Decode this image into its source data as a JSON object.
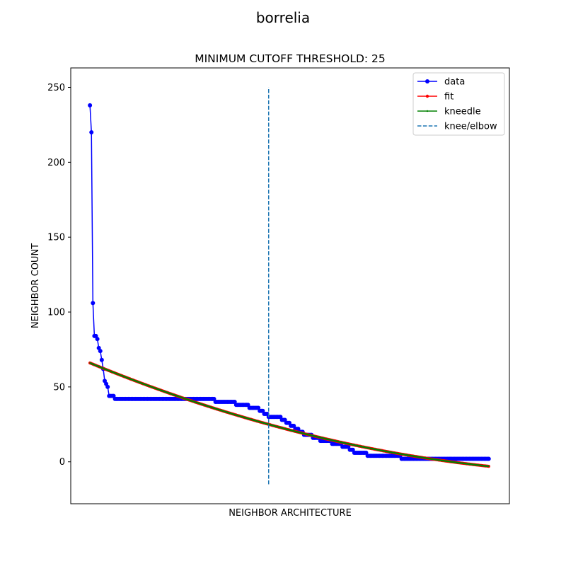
{
  "figure": {
    "suptitle": "borrelia"
  },
  "chart_data": {
    "type": "line",
    "title": "MINIMUM CUTOFF THRESHOLD: 25",
    "xlabel": "NEIGHBOR ARCHITECTURE",
    "ylabel": "NEIGHBOR COUNT",
    "ylim": [
      -28,
      263
    ],
    "xlim": [
      -13,
      284
    ],
    "x_ticks_shown": false,
    "yticks": [
      0,
      50,
      100,
      150,
      200,
      250
    ],
    "grid": false,
    "legend_position": "top-right",
    "data_points_n": 271,
    "data_steps": [
      {
        "from": 0,
        "to": 0,
        "value": 238
      },
      {
        "from": 1,
        "to": 1,
        "value": 220
      },
      {
        "from": 2,
        "to": 2,
        "value": 106
      },
      {
        "from": 3,
        "to": 4,
        "value": 84
      },
      {
        "from": 5,
        "to": 5,
        "value": 82
      },
      {
        "from": 6,
        "to": 6,
        "value": 76
      },
      {
        "from": 7,
        "to": 7,
        "value": 74
      },
      {
        "from": 8,
        "to": 8,
        "value": 68
      },
      {
        "from": 9,
        "to": 9,
        "value": 62
      },
      {
        "from": 10,
        "to": 10,
        "value": 54
      },
      {
        "from": 11,
        "to": 11,
        "value": 52
      },
      {
        "from": 12,
        "to": 12,
        "value": 50
      },
      {
        "from": 13,
        "to": 16,
        "value": 44
      },
      {
        "from": 17,
        "to": 84,
        "value": 42
      },
      {
        "from": 85,
        "to": 98,
        "value": 40
      },
      {
        "from": 99,
        "to": 107,
        "value": 38
      },
      {
        "from": 108,
        "to": 114,
        "value": 36
      },
      {
        "from": 115,
        "to": 117,
        "value": 34
      },
      {
        "from": 118,
        "to": 120,
        "value": 32
      },
      {
        "from": 121,
        "to": 129,
        "value": 30
      },
      {
        "from": 130,
        "to": 132,
        "value": 28
      },
      {
        "from": 133,
        "to": 135,
        "value": 26
      },
      {
        "from": 136,
        "to": 138,
        "value": 24
      },
      {
        "from": 139,
        "to": 141,
        "value": 22
      },
      {
        "from": 142,
        "to": 144,
        "value": 20
      },
      {
        "from": 145,
        "to": 150,
        "value": 18
      },
      {
        "from": 151,
        "to": 155,
        "value": 16
      },
      {
        "from": 156,
        "to": 163,
        "value": 14
      },
      {
        "from": 164,
        "to": 170,
        "value": 12
      },
      {
        "from": 171,
        "to": 175,
        "value": 10
      },
      {
        "from": 176,
        "to": 178,
        "value": 8
      },
      {
        "from": 179,
        "to": 187,
        "value": 6
      },
      {
        "from": 188,
        "to": 210,
        "value": 4
      },
      {
        "from": 211,
        "to": 270,
        "value": 2
      }
    ],
    "fit": {
      "x_start": 0,
      "x_end": 270,
      "y_start": 66,
      "y_end": -3,
      "knee_index": 121,
      "y_at_knee": 25
    },
    "knee_line": {
      "x": 121,
      "y_from": -15,
      "y_to": 250
    },
    "series": [
      {
        "name": "data",
        "color": "#0000ff",
        "marker": "circle"
      },
      {
        "name": "fit",
        "color": "#ff0000",
        "marker": "point"
      },
      {
        "name": "kneedle",
        "color": "#008000",
        "marker": "small-point"
      },
      {
        "name": "knee/elbow",
        "color": "#1f77b4",
        "style": "dashed"
      }
    ]
  }
}
